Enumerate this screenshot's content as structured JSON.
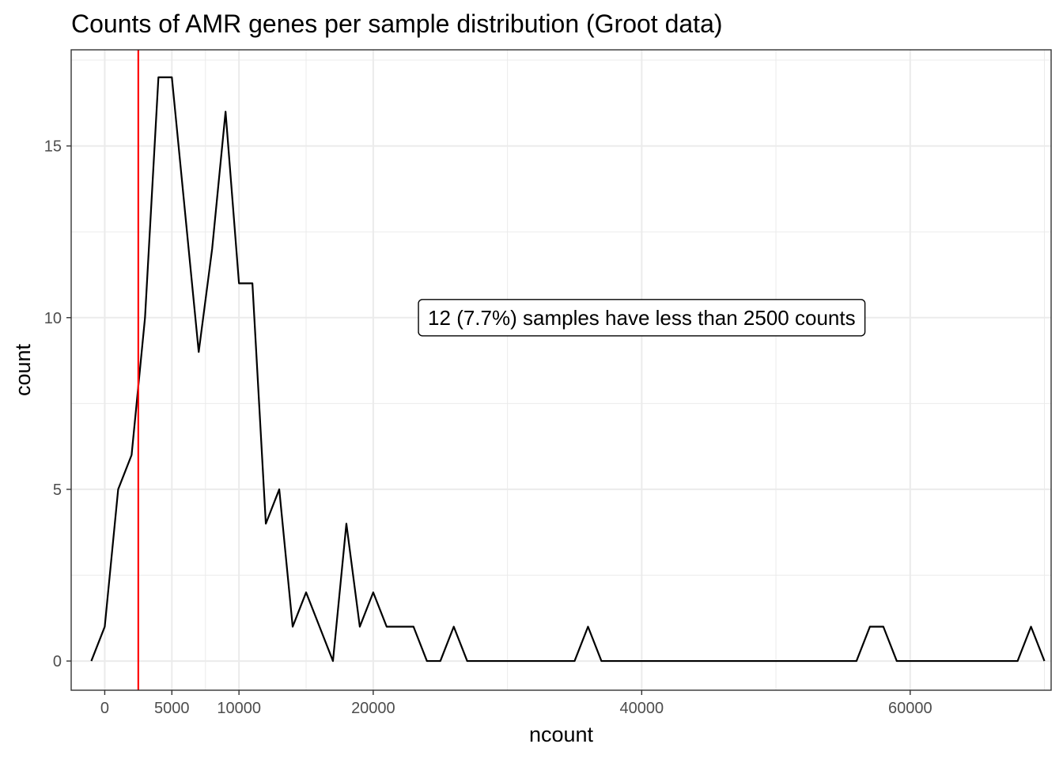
{
  "chart_data": {
    "type": "line",
    "title": "Counts of AMR genes per sample distribution (Groot data)",
    "xlabel": "ncount",
    "ylabel": "count",
    "x_ticks": [
      0,
      5000,
      10000,
      20000,
      40000,
      60000
    ],
    "x_tick_labels": [
      "0",
      "5000",
      "10000",
      "20000",
      "40000",
      "60000"
    ],
    "y_ticks": [
      0,
      5,
      10,
      15
    ],
    "y_tick_labels": [
      "0",
      "5",
      "10",
      "15"
    ],
    "xlim": [
      -2500,
      70500
    ],
    "ylim": [
      -0.85,
      17.8
    ],
    "grid": true,
    "series": [
      {
        "color": "#000000",
        "x": [
          -1000,
          0,
          1000,
          2000,
          3000,
          4000,
          5000,
          6000,
          7000,
          8000,
          9000,
          10000,
          11000,
          12000,
          13000,
          14000,
          15000,
          16000,
          17000,
          18000,
          19000,
          20000,
          21000,
          22000,
          23000,
          24000,
          25000,
          26000,
          27000,
          35000,
          36000,
          37000,
          56000,
          57000,
          58000,
          59000,
          68000,
          69000,
          70000
        ],
        "y": [
          0,
          1,
          5,
          6,
          10,
          17,
          17,
          13,
          9,
          12,
          16,
          11,
          11,
          4,
          5,
          1,
          2,
          1,
          0,
          4,
          1,
          2,
          1,
          1,
          1,
          0,
          0,
          1,
          0,
          0,
          1,
          0,
          0,
          1,
          1,
          0,
          0,
          1,
          0
        ]
      }
    ],
    "threshold": {
      "x": 2500,
      "color": "#ff0000"
    },
    "annotation": {
      "text": "12 (7.7%) samples have less than 2500 counts",
      "x": 40000,
      "y": 10
    }
  }
}
